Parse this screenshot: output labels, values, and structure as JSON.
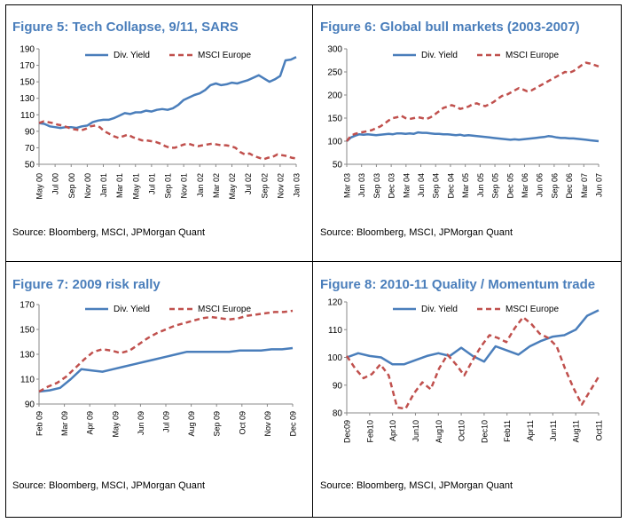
{
  "colors": {
    "div_yield": "#4A7EBB",
    "msci": "#C0504D",
    "title": "#4A7EBB"
  },
  "panels": [
    {
      "title": "Figure 5: Tech Collapse, 9/11, SARS",
      "source": "Source: Bloomberg, MSCI, JPMorgan Quant"
    },
    {
      "title": "Figure 6: Global bull markets (2003-2007)",
      "source": "Source: Bloomberg, MSCI, JPMorgan Quant"
    },
    {
      "title": "Figure 7: 2009 risk rally",
      "source": "Source: Bloomberg, MSCI, JPMorgan Quant"
    },
    {
      "title": "Figure 8: 2010-11 Quality / Momentum trade",
      "source": "Source: Bloomberg, MSCI, JPMorgan Quant"
    }
  ],
  "chart_data": [
    {
      "type": "line",
      "title": "Figure 5: Tech Collapse, 9/11, SARS",
      "ylim": [
        50,
        190
      ],
      "yticks": [
        50,
        70,
        90,
        110,
        130,
        150,
        170,
        190
      ],
      "x_ticks": [
        "May 00",
        "Jul 00",
        "Sep 00",
        "Nov 00",
        "Jan 01",
        "Mar 01",
        "May 01",
        "Jul 01",
        "Sep 01",
        "Nov 01",
        "Jan 02",
        "Mar 02",
        "May 02",
        "Jul 02",
        "Sep 02",
        "Nov 02",
        "Jan 03"
      ],
      "legend": "top",
      "series": [
        {
          "name": "Div. Yield",
          "style": "solid",
          "values": [
            100,
            99,
            96,
            95,
            94,
            95,
            95,
            94,
            96,
            97,
            101,
            103,
            104,
            104,
            106,
            109,
            112,
            111,
            113,
            113,
            115,
            114,
            116,
            117,
            116,
            118,
            122,
            128,
            131,
            134,
            136,
            140,
            146,
            148,
            146,
            147,
            149,
            148,
            150,
            152,
            155,
            158,
            154,
            150,
            153,
            157,
            176,
            177,
            180
          ]
        },
        {
          "name": "MSCI Europe",
          "style": "dashed",
          "values": [
            100,
            102,
            101,
            100,
            98,
            97,
            95,
            93,
            92,
            91,
            93,
            96,
            97,
            95,
            90,
            87,
            84,
            82,
            84,
            86,
            83,
            81,
            79,
            79,
            78,
            77,
            75,
            72,
            70,
            70,
            72,
            74,
            75,
            73,
            72,
            73,
            74,
            75,
            74,
            73,
            73,
            72,
            70,
            65,
            62,
            63,
            60,
            58,
            56,
            58,
            59,
            62,
            61,
            60,
            58,
            57
          ]
        }
      ]
    },
    {
      "type": "line",
      "title": "Figure 6: Global bull markets (2003-2007)",
      "ylim": [
        50,
        300
      ],
      "yticks": [
        50,
        100,
        150,
        200,
        250,
        300
      ],
      "x_ticks": [
        "Mar 03",
        "Jun 03",
        "Sep 03",
        "Dec 03",
        "Mar 04",
        "Jun 04",
        "Sep 04",
        "Dec 04",
        "Mar 05",
        "Jun 05",
        "Sep 05",
        "Dec 05",
        "Mar 06",
        "Jun 06",
        "Sep 06",
        "Dec 06",
        "Mar 07",
        "Jun 07"
      ],
      "legend": "top",
      "series": [
        {
          "name": "Div. Yield",
          "style": "solid",
          "values": [
            100,
            108,
            112,
            115,
            114,
            115,
            114,
            113,
            114,
            115,
            116,
            115,
            117,
            117,
            116,
            117,
            116,
            119,
            118,
            118,
            117,
            116,
            116,
            115,
            115,
            114,
            113,
            114,
            112,
            113,
            112,
            111,
            110,
            109,
            108,
            107,
            106,
            105,
            104,
            103,
            104,
            103,
            104,
            105,
            106,
            107,
            108,
            109,
            111,
            110,
            108,
            107,
            107,
            106,
            106,
            105,
            104,
            103,
            102,
            101,
            100
          ]
        },
        {
          "name": "MSCI Europe",
          "style": "dashed",
          "values": [
            100,
            112,
            116,
            118,
            120,
            122,
            124,
            128,
            132,
            138,
            145,
            150,
            152,
            155,
            150,
            148,
            150,
            152,
            150,
            148,
            152,
            158,
            165,
            172,
            175,
            178,
            175,
            170,
            172,
            175,
            180,
            182,
            178,
            176,
            180,
            185,
            192,
            198,
            200,
            205,
            210,
            215,
            212,
            208,
            210,
            215,
            220,
            225,
            230,
            235,
            240,
            245,
            250,
            248,
            252,
            258,
            265,
            270,
            268,
            265,
            262
          ]
        }
      ]
    },
    {
      "type": "line",
      "title": "Figure 7: 2009 risk rally",
      "ylim": [
        90,
        170
      ],
      "yticks": [
        90,
        110,
        130,
        150,
        170
      ],
      "x_ticks": [
        "Feb 09",
        "Mar 09",
        "Apr 09",
        "May 09",
        "Jun 09",
        "Jul 09",
        "Aug 09",
        "Sep 09",
        "Oct 09",
        "Nov 09",
        "Dec 09"
      ],
      "legend": "top",
      "series": [
        {
          "name": "Div. Yield",
          "style": "solid",
          "values": [
            100,
            101,
            103,
            110,
            118,
            117,
            116,
            118,
            120,
            122,
            124,
            126,
            128,
            130,
            132,
            132,
            132,
            132,
            132,
            133,
            133,
            133,
            134,
            134,
            135
          ]
        },
        {
          "name": "MSCI Europe",
          "style": "dashed",
          "values": [
            100,
            104,
            107,
            112,
            119,
            126,
            132,
            134,
            133,
            131,
            133,
            138,
            143,
            147,
            150,
            153,
            155,
            157,
            159,
            160,
            159,
            158,
            159,
            161,
            162,
            163,
            164,
            164,
            165
          ]
        }
      ]
    },
    {
      "type": "line",
      "title": "Figure 8: 2010-11 Quality / Momentum trade",
      "ylim": [
        80,
        120
      ],
      "yticks": [
        80,
        90,
        100,
        110,
        120
      ],
      "x_ticks": [
        "Dec09",
        "Feb10",
        "Apr10",
        "Jun10",
        "Aug10",
        "Oct10",
        "Dec10",
        "Feb11",
        "Apr11",
        "Jun11",
        "Aug11",
        "Oct11"
      ],
      "legend": "top",
      "series": [
        {
          "name": "Div. Yield",
          "style": "solid",
          "values": [
            100,
            101.5,
            100.5,
            100,
            97.5,
            97.5,
            99,
            100.5,
            101.5,
            100.5,
            103.5,
            100.5,
            98.5,
            104,
            102.5,
            101,
            104,
            106,
            107.5,
            108,
            110,
            115,
            117
          ]
        },
        {
          "name": "MSCI Europe",
          "style": "dashed",
          "values": [
            100.5,
            96,
            92.5,
            94,
            97.5,
            93.5,
            82,
            81.5,
            87,
            91,
            88.5,
            96,
            101,
            97.5,
            93.5,
            99,
            104,
            108,
            107,
            105.5,
            110.5,
            114.5,
            112,
            108.5,
            107,
            104,
            96,
            89,
            83,
            88,
            93
          ]
        }
      ]
    }
  ]
}
